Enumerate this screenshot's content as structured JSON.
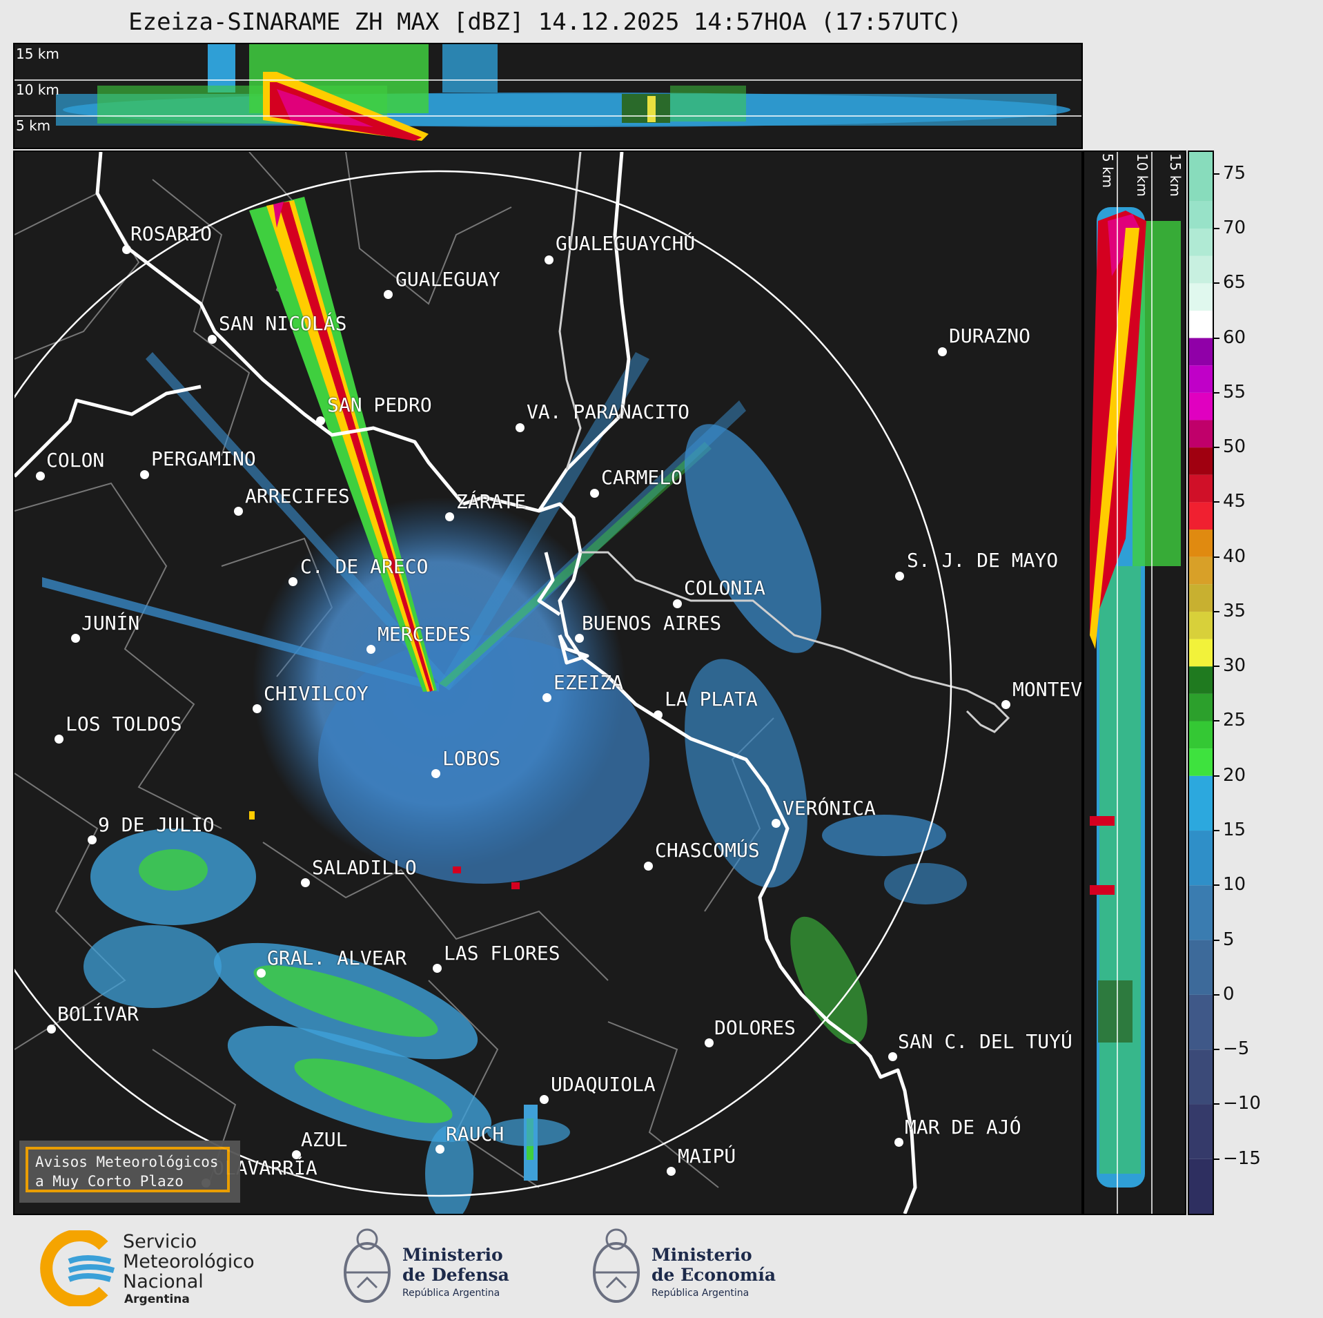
{
  "title": "Ezeiza-SINARAME ZH MAX [dBZ] 14.12.2025 14:57HOA (17:57UTC)",
  "top_panel": {
    "height_labels": [
      "15 km",
      "10 km",
      "5 km"
    ]
  },
  "side_panel": {
    "height_labels": [
      "5 km",
      "10 km",
      "15 km"
    ]
  },
  "colorbar": {
    "unit": "dBZ",
    "tick_labels": [
      "75",
      "70",
      "65",
      "60",
      "55",
      "50",
      "45",
      "40",
      "35",
      "30",
      "25",
      "20",
      "15",
      "10",
      "5",
      "0",
      "−5",
      "−10",
      "−15"
    ],
    "range": [
      -20,
      77
    ]
  },
  "cities": [
    {
      "name": "ROSARIO"
    },
    {
      "name": "GUALEGUAYCHÚ"
    },
    {
      "name": "GUALEGUAY"
    },
    {
      "name": "SAN NICOLÁS"
    },
    {
      "name": "DURAZNO"
    },
    {
      "name": "SAN PEDRO"
    },
    {
      "name": "VA. PARANACITO"
    },
    {
      "name": "COLON"
    },
    {
      "name": "PERGAMINO"
    },
    {
      "name": "CARMELO"
    },
    {
      "name": "ARRECIFES"
    },
    {
      "name": "ZÁRATE"
    },
    {
      "name": "S. J. DE MAYO"
    },
    {
      "name": "C. DE ARECO"
    },
    {
      "name": "COLONIA"
    },
    {
      "name": "JUNÍN"
    },
    {
      "name": "BUENOS AIRES"
    },
    {
      "name": "MERCEDES"
    },
    {
      "name": "MONTEVIDEO"
    },
    {
      "name": "EZEIZA"
    },
    {
      "name": "CHIVILCOY"
    },
    {
      "name": "LA PLATA"
    },
    {
      "name": "LOS TOLDOS"
    },
    {
      "name": "LOBOS"
    },
    {
      "name": "VERÓNICA"
    },
    {
      "name": "9 DE JULIO"
    },
    {
      "name": "CHASCOMÚS"
    },
    {
      "name": "SALADILLO"
    },
    {
      "name": "GRAL. ALVEAR"
    },
    {
      "name": "LAS FLORES"
    },
    {
      "name": "BOLÍVAR"
    },
    {
      "name": "DOLORES"
    },
    {
      "name": "SAN C. DEL TUYÚ"
    },
    {
      "name": "UDAQUIOLA"
    },
    {
      "name": "MAR DE AJÓ"
    },
    {
      "name": "AZUL"
    },
    {
      "name": "RAUCH"
    },
    {
      "name": "MAIPÚ"
    },
    {
      "name": "OLAVARRÍA"
    }
  ],
  "aviso": {
    "line1": "Avisos Meteorológicos",
    "line2": "a Muy Corto Plazo"
  },
  "footer": {
    "smn": {
      "line1": "Servicio",
      "line2": "Meteorológico",
      "line3": "Nacional",
      "line4": "Argentina"
    },
    "defensa": {
      "line1": "Ministerio",
      "line2": "de Defensa",
      "line3": "República Argentina"
    },
    "economia": {
      "line1": "Ministerio",
      "line2": "de Economía",
      "line3": "República Argentina"
    }
  },
  "colors": {
    "background": "#1b1b1b",
    "page": "#e8e8e8",
    "aviso_border": "#f5a400",
    "smn_orange": "#f5a400",
    "smn_blue": "#3aa0d8"
  }
}
